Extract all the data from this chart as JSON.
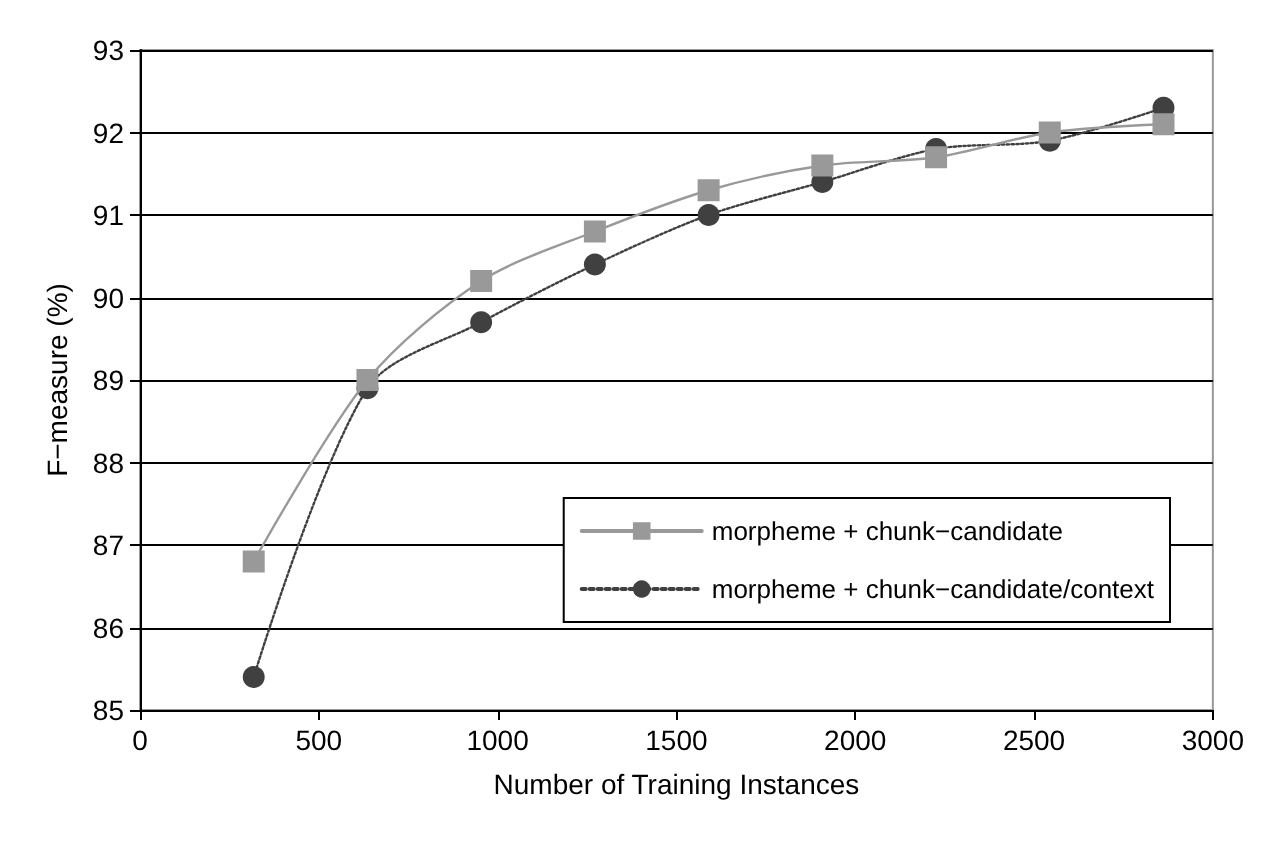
{
  "chart_data": {
    "type": "line",
    "xlabel": "Number of Training Instances",
    "ylabel": "F−measure (%)",
    "x": [
      318,
      636,
      954,
      1272,
      1590,
      1908,
      2226,
      2544,
      2862
    ],
    "xlim": [
      0,
      3000
    ],
    "xticks": [
      0,
      500,
      1000,
      1500,
      2000,
      2500,
      3000
    ],
    "ylim": [
      85,
      93
    ],
    "yticks": [
      85,
      86,
      87,
      88,
      89,
      90,
      91,
      92,
      93
    ],
    "grid": "y",
    "legend": "bottom right",
    "series": [
      {
        "name": "morpheme + chunk−candidate",
        "color": "#999999",
        "marker": "square",
        "line_style": "solid",
        "values": [
          86.8,
          89.0,
          90.2,
          90.8,
          91.3,
          91.6,
          91.7,
          92.0,
          92.1
        ]
      },
      {
        "name": "morpheme + chunk−candidate/context",
        "color": "#404040",
        "marker": "circle",
        "line_style": "dotted",
        "values": [
          85.4,
          88.9,
          89.7,
          90.4,
          91.0,
          91.4,
          91.8,
          91.9,
          92.3
        ]
      }
    ]
  }
}
